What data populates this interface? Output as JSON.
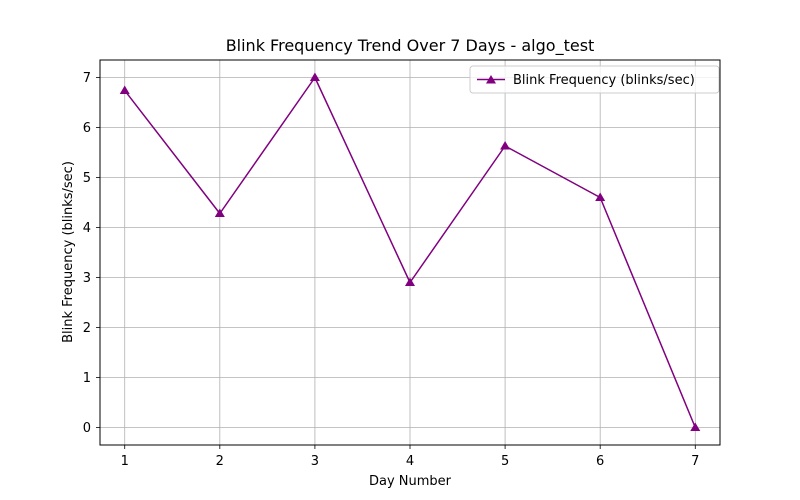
{
  "chart_data": {
    "type": "line",
    "title": "Blink Frequency Trend Over 7 Days - algo_test",
    "xlabel": "Day Number",
    "ylabel": "Blink Frequency (blinks/sec)",
    "x": [
      1,
      2,
      3,
      4,
      5,
      6,
      7
    ],
    "xlim": [
      0.74,
      7.26
    ],
    "ylim": [
      -0.35,
      7.35
    ],
    "xticks": [
      "1",
      "2",
      "3",
      "4",
      "5",
      "6",
      "7"
    ],
    "yticks": [
      "0",
      "1",
      "2",
      "3",
      "4",
      "5",
      "6",
      "7"
    ],
    "grid": true,
    "legend": "upper right",
    "series": [
      {
        "name": "Blink Frequency (blinks/sec)",
        "values": [
          6.74,
          4.28,
          7.0,
          2.9,
          5.63,
          4.6,
          0.0
        ],
        "color": "#800080",
        "marker": "triangle-up"
      }
    ]
  }
}
